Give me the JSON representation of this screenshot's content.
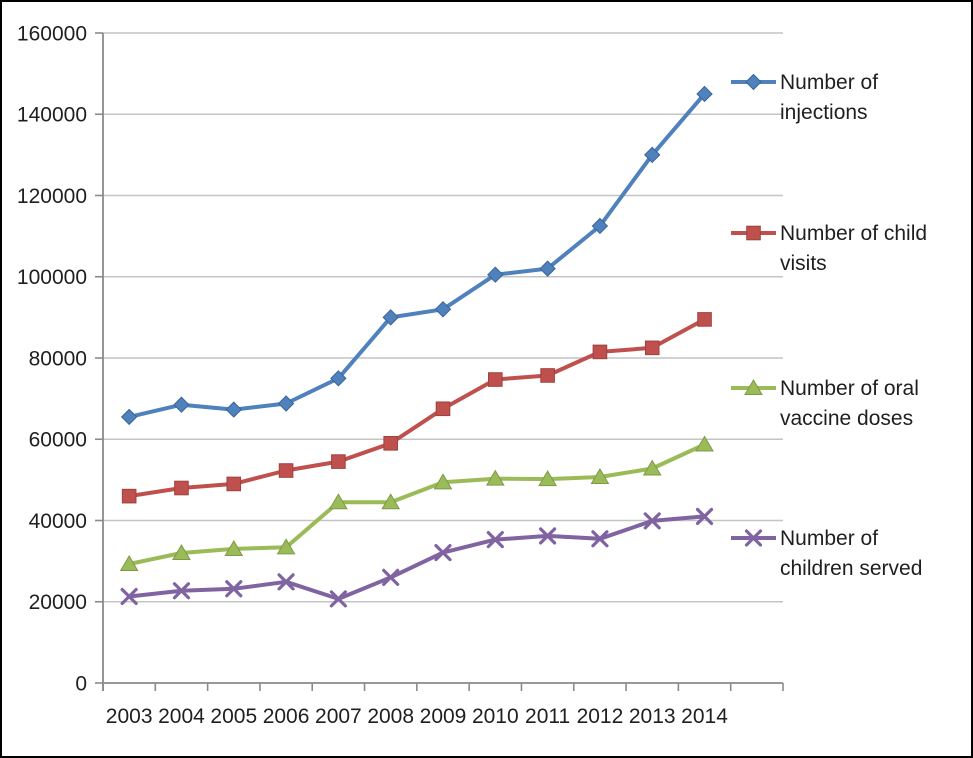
{
  "chart_data": {
    "type": "line",
    "x": [
      2003,
      2004,
      2005,
      2006,
      2007,
      2008,
      2009,
      2010,
      2011,
      2012,
      2013,
      2014
    ],
    "x_tick_labels": [
      "2003",
      "2004",
      "2005",
      "2006",
      "2007",
      "2008",
      "2009",
      "2010",
      "2011",
      "2012",
      "2013",
      "2014"
    ],
    "y_ticks": [
      0,
      20000,
      40000,
      60000,
      80000,
      100000,
      120000,
      140000,
      160000
    ],
    "y_tick_labels": [
      "0",
      "20000",
      "40000",
      "60000",
      "80000",
      "100000",
      "120000",
      "140000",
      "160000"
    ],
    "ylim": [
      0,
      160000
    ],
    "y_tick_step": 20000,
    "grid": "horizontal-only",
    "legend_position": "right",
    "series": [
      {
        "id": "injections",
        "name": "Number of injections",
        "label_lines": [
          "Number of",
          "injections"
        ],
        "marker": "diamond",
        "color": "#4F81BD",
        "edge_color": "#3A6598",
        "values": [
          65500,
          68500,
          67300,
          68800,
          75000,
          90000,
          92000,
          100500,
          102000,
          112500,
          130000,
          145000
        ]
      },
      {
        "id": "child-visits",
        "name": "Number of child visits",
        "label_lines": [
          "Number of child",
          "visits"
        ],
        "marker": "square",
        "color": "#C0504D",
        "edge_color": "#9E423F",
        "values": [
          46000,
          48000,
          49000,
          52300,
          54500,
          59000,
          67500,
          74700,
          75700,
          81500,
          82500,
          89500
        ]
      },
      {
        "id": "oral-vaccine-doses",
        "name": "Number of oral vaccine doses",
        "label_lines": [
          "Number of oral",
          "vaccine doses"
        ],
        "marker": "triangle",
        "color": "#9BBB59",
        "edge_color": "#7E9A48",
        "values": [
          29300,
          32000,
          33000,
          33400,
          44500,
          44500,
          49400,
          50300,
          50200,
          50700,
          52800,
          58700
        ]
      },
      {
        "id": "children-served",
        "name": "Number of children served",
        "label_lines": [
          "Number of",
          "children served"
        ],
        "marker": "x",
        "color": "#8064A2",
        "edge_color": "#68518A",
        "values": [
          21300,
          22700,
          23200,
          24900,
          20700,
          26000,
          32100,
          35300,
          36200,
          35500,
          39900,
          41000
        ]
      }
    ],
    "colors": {
      "background": "#FFFFFF",
      "border": "#000000",
      "gridline": "#C4C4C4",
      "axis": "#8A8A8A",
      "text": "#1F1F1F"
    }
  }
}
